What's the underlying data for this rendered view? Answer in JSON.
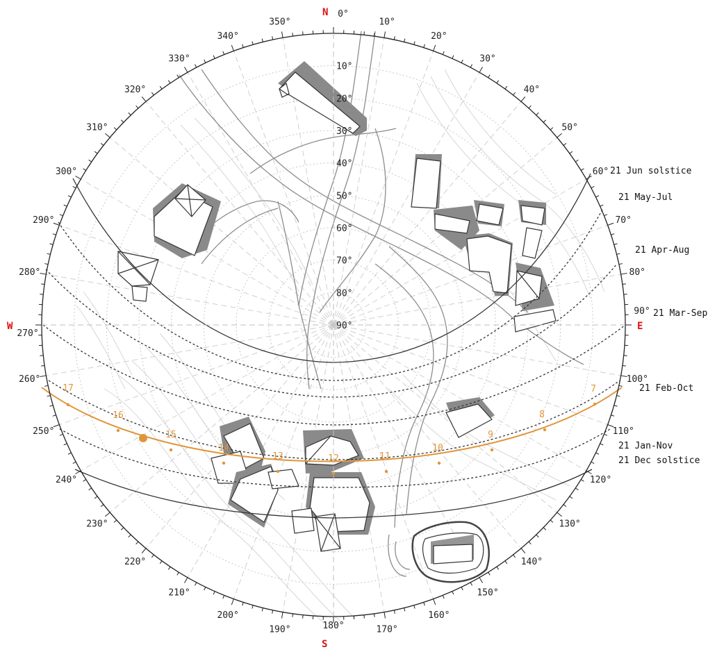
{
  "cardinals": {
    "north": "N",
    "east": "E",
    "south": "S",
    "west": "W"
  },
  "azimuth_labels": [
    "0°",
    "10°",
    "20°",
    "30°",
    "40°",
    "50°",
    "60°",
    "70°",
    "80°",
    "90°",
    "100°",
    "110°",
    "120°",
    "130°",
    "140°",
    "150°",
    "160°",
    "170°",
    "180°",
    "190°",
    "200°",
    "210°",
    "220°",
    "230°",
    "240°",
    "250°",
    "260°",
    "270°",
    "280°",
    "290°",
    "300°",
    "310°",
    "320°",
    "330°",
    "340°",
    "350°"
  ],
  "altitude_labels": [
    "10°",
    "20°",
    "30°",
    "40°",
    "50°",
    "60°",
    "70°",
    "80°",
    "90°"
  ],
  "sun_paths": [
    {
      "label": "21 Jun  solstice",
      "color": "#333333"
    },
    {
      "label": "21 May-Jul",
      "color": "#333333"
    },
    {
      "label": "21 Apr-Aug",
      "color": "#333333"
    },
    {
      "label": "21 Mar-Sep",
      "color": "#333333"
    },
    {
      "label": "21 Feb-Oct",
      "color": "#333333"
    },
    {
      "label": "21 Jan-Nov",
      "color": "#333333"
    },
    {
      "label": "21 Dec  solstice",
      "color": "#333333"
    }
  ],
  "current_path": {
    "color": "#e0953a"
  },
  "hour_labels": [
    "7",
    "8",
    "9",
    "10",
    "11",
    "12",
    "13",
    "14",
    "15",
    "16",
    "17"
  ],
  "colors": {
    "cardinal": "#e01010",
    "highlight": "#e0953a",
    "grid": "#cfcfcf",
    "building_shadow": "#8a8a8a"
  }
}
